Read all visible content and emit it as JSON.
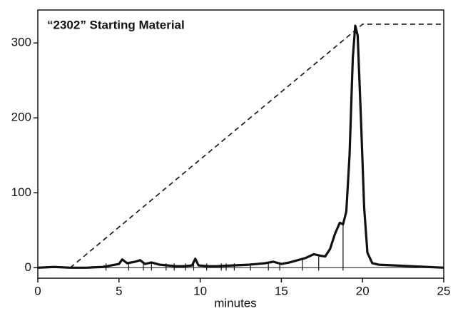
{
  "chart_data": {
    "type": "line",
    "title": "“2302” Starting Material",
    "x_label": "minutes",
    "xlim": [
      0,
      25
    ],
    "ylim": [
      -14,
      344
    ],
    "xticks": [
      0,
      5,
      10,
      15,
      20,
      25
    ],
    "yticks": [
      0,
      100,
      200,
      300
    ],
    "series": [
      {
        "color": "#111111",
        "dash": false,
        "x": [
          0,
          1,
          2,
          3,
          4,
          4.5,
          5,
          5.2,
          5.5,
          6,
          6.3,
          6.6,
          7,
          7.5,
          8,
          8.5,
          9,
          9.5,
          9.7,
          9.9,
          10.5,
          11,
          12,
          13,
          13.5,
          14,
          14.5,
          15,
          15.5,
          16,
          16.5,
          17,
          17.4,
          17.7,
          18,
          18.3,
          18.6,
          18.8,
          19,
          19.2,
          19.4,
          19.55,
          19.7,
          19.9,
          20.1,
          20.3,
          20.6,
          21,
          22,
          23,
          24,
          25
        ],
        "values": [
          0,
          1,
          0,
          0,
          1,
          3,
          5,
          11,
          6,
          8,
          10,
          5,
          7,
          4,
          3,
          2,
          2,
          3,
          12,
          3,
          2,
          2,
          3,
          4,
          5,
          6,
          8,
          5,
          7,
          10,
          13,
          18,
          16,
          15,
          25,
          45,
          60,
          58,
          75,
          150,
          280,
          323,
          310,
          200,
          80,
          20,
          6,
          4,
          3,
          2,
          1,
          0
        ]
      },
      {
        "color": "#111111",
        "dash": true,
        "x": [
          2,
          20,
          25
        ],
        "values": [
          0,
          325,
          325
        ]
      }
    ],
    "integration_marks": [
      4.2,
      5.6,
      6.5,
      7.0,
      7.9,
      8.4,
      9.1,
      9.6,
      10.4,
      11.3,
      11.6,
      12.1,
      13.1,
      14.2,
      14.9,
      16.3,
      17.3,
      18.8
    ]
  }
}
